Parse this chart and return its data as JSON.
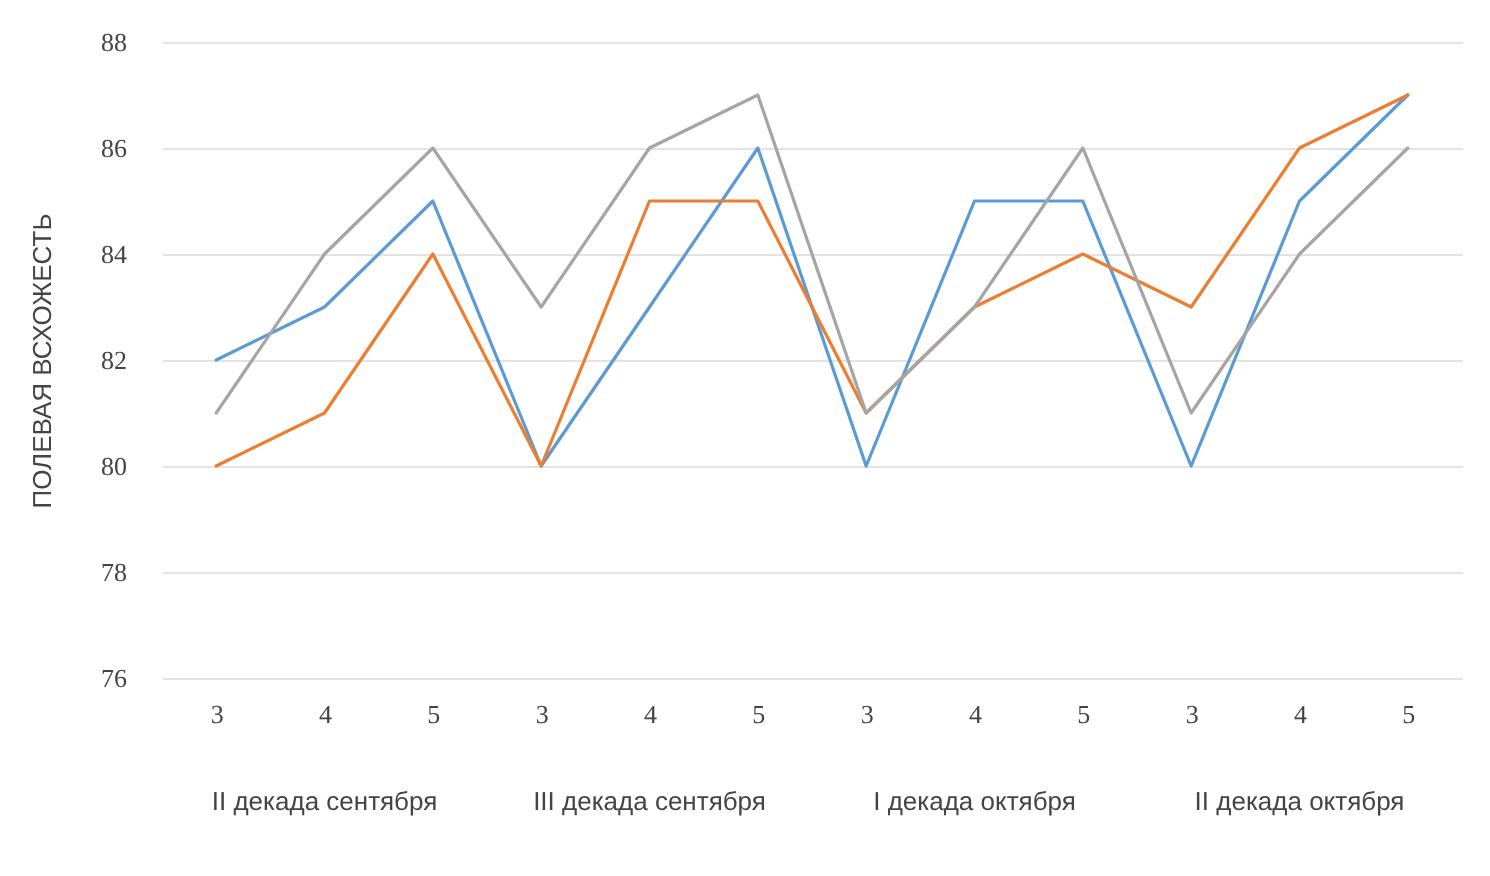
{
  "chart_data": {
    "type": "line",
    "ylabel": "ПОЛЕВАЯ ВСХОЖЕСТЬ",
    "categories": [
      "3",
      "4",
      "5",
      "3",
      "4",
      "5",
      "3",
      "4",
      "5",
      "3",
      "4",
      "5"
    ],
    "series": [
      {
        "color": "#5b9bd5",
        "values": [
          82,
          83,
          85,
          80,
          83,
          86,
          80,
          85,
          85,
          80,
          85,
          87
        ]
      },
      {
        "color": "#ed7d31",
        "values": [
          80,
          81,
          84,
          80,
          85,
          85,
          81,
          83,
          84,
          83,
          86,
          87
        ]
      },
      {
        "color": "#a5a5a5",
        "values": [
          81,
          84,
          86,
          83,
          86,
          87,
          81,
          83,
          86,
          81,
          84,
          86
        ]
      }
    ],
    "ylim": [
      76,
      88
    ],
    "yticks": [
      76,
      78,
      80,
      82,
      84,
      86,
      88
    ],
    "grid": "y",
    "legend": false,
    "annotations": [
      "II декада сентября",
      "III декада сентября",
      "I декада октября",
      "II декада октября"
    ]
  }
}
